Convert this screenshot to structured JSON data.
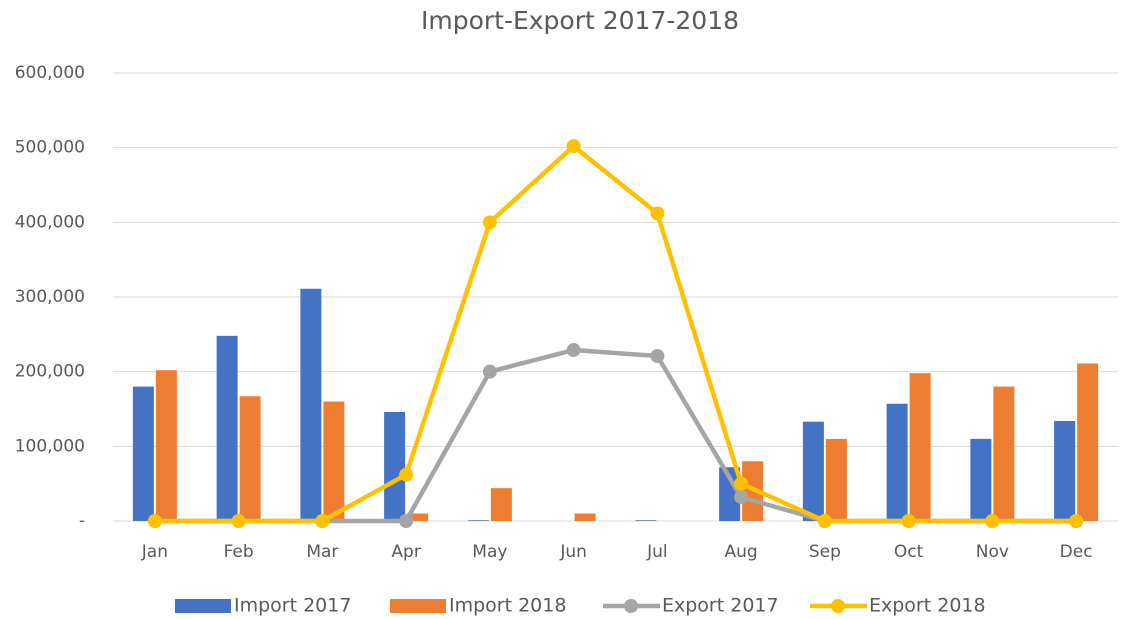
{
  "chart_data": {
    "type": "bar",
    "title": "Import-Export 2017-2018",
    "categories": [
      "Jan",
      "Feb",
      "Mar",
      "Apr",
      "May",
      "Jun",
      "Jul",
      "Aug",
      "Sep",
      "Oct",
      "Nov",
      "Dec"
    ],
    "series": [
      {
        "name": "Import 2017",
        "type": "bar",
        "color": "#4472c4",
        "values": [
          180000,
          248000,
          311000,
          146000,
          1000,
          0,
          1000,
          72000,
          133000,
          157000,
          110000,
          134000
        ]
      },
      {
        "name": "Import 2018",
        "type": "bar",
        "color": "#ed7d31",
        "values": [
          202000,
          167000,
          160000,
          10000,
          44000,
          10000,
          0,
          80000,
          110000,
          198000,
          180000,
          211000
        ]
      },
      {
        "name": "Export 2017",
        "type": "line",
        "color": "#a5a5a5",
        "values": [
          0,
          0,
          0,
          0,
          200000,
          229000,
          221000,
          32000,
          0,
          0,
          0,
          0
        ]
      },
      {
        "name": "Export 2018",
        "type": "line",
        "color": "#ffc000",
        "values": [
          0,
          0,
          0,
          62000,
          400000,
          502000,
          412000,
          50000,
          0,
          0,
          0,
          0
        ]
      }
    ],
    "ylim": [
      0,
      600000
    ],
    "yticks": [
      {
        "value": 0,
        "label": "-"
      },
      {
        "value": 100000,
        "label": "100,000"
      },
      {
        "value": 200000,
        "label": "200,000"
      },
      {
        "value": 300000,
        "label": "300,000"
      },
      {
        "value": 400000,
        "label": "400,000"
      },
      {
        "value": 500000,
        "label": "500,000"
      },
      {
        "value": 600000,
        "label": "600,000"
      }
    ],
    "grid": true
  }
}
